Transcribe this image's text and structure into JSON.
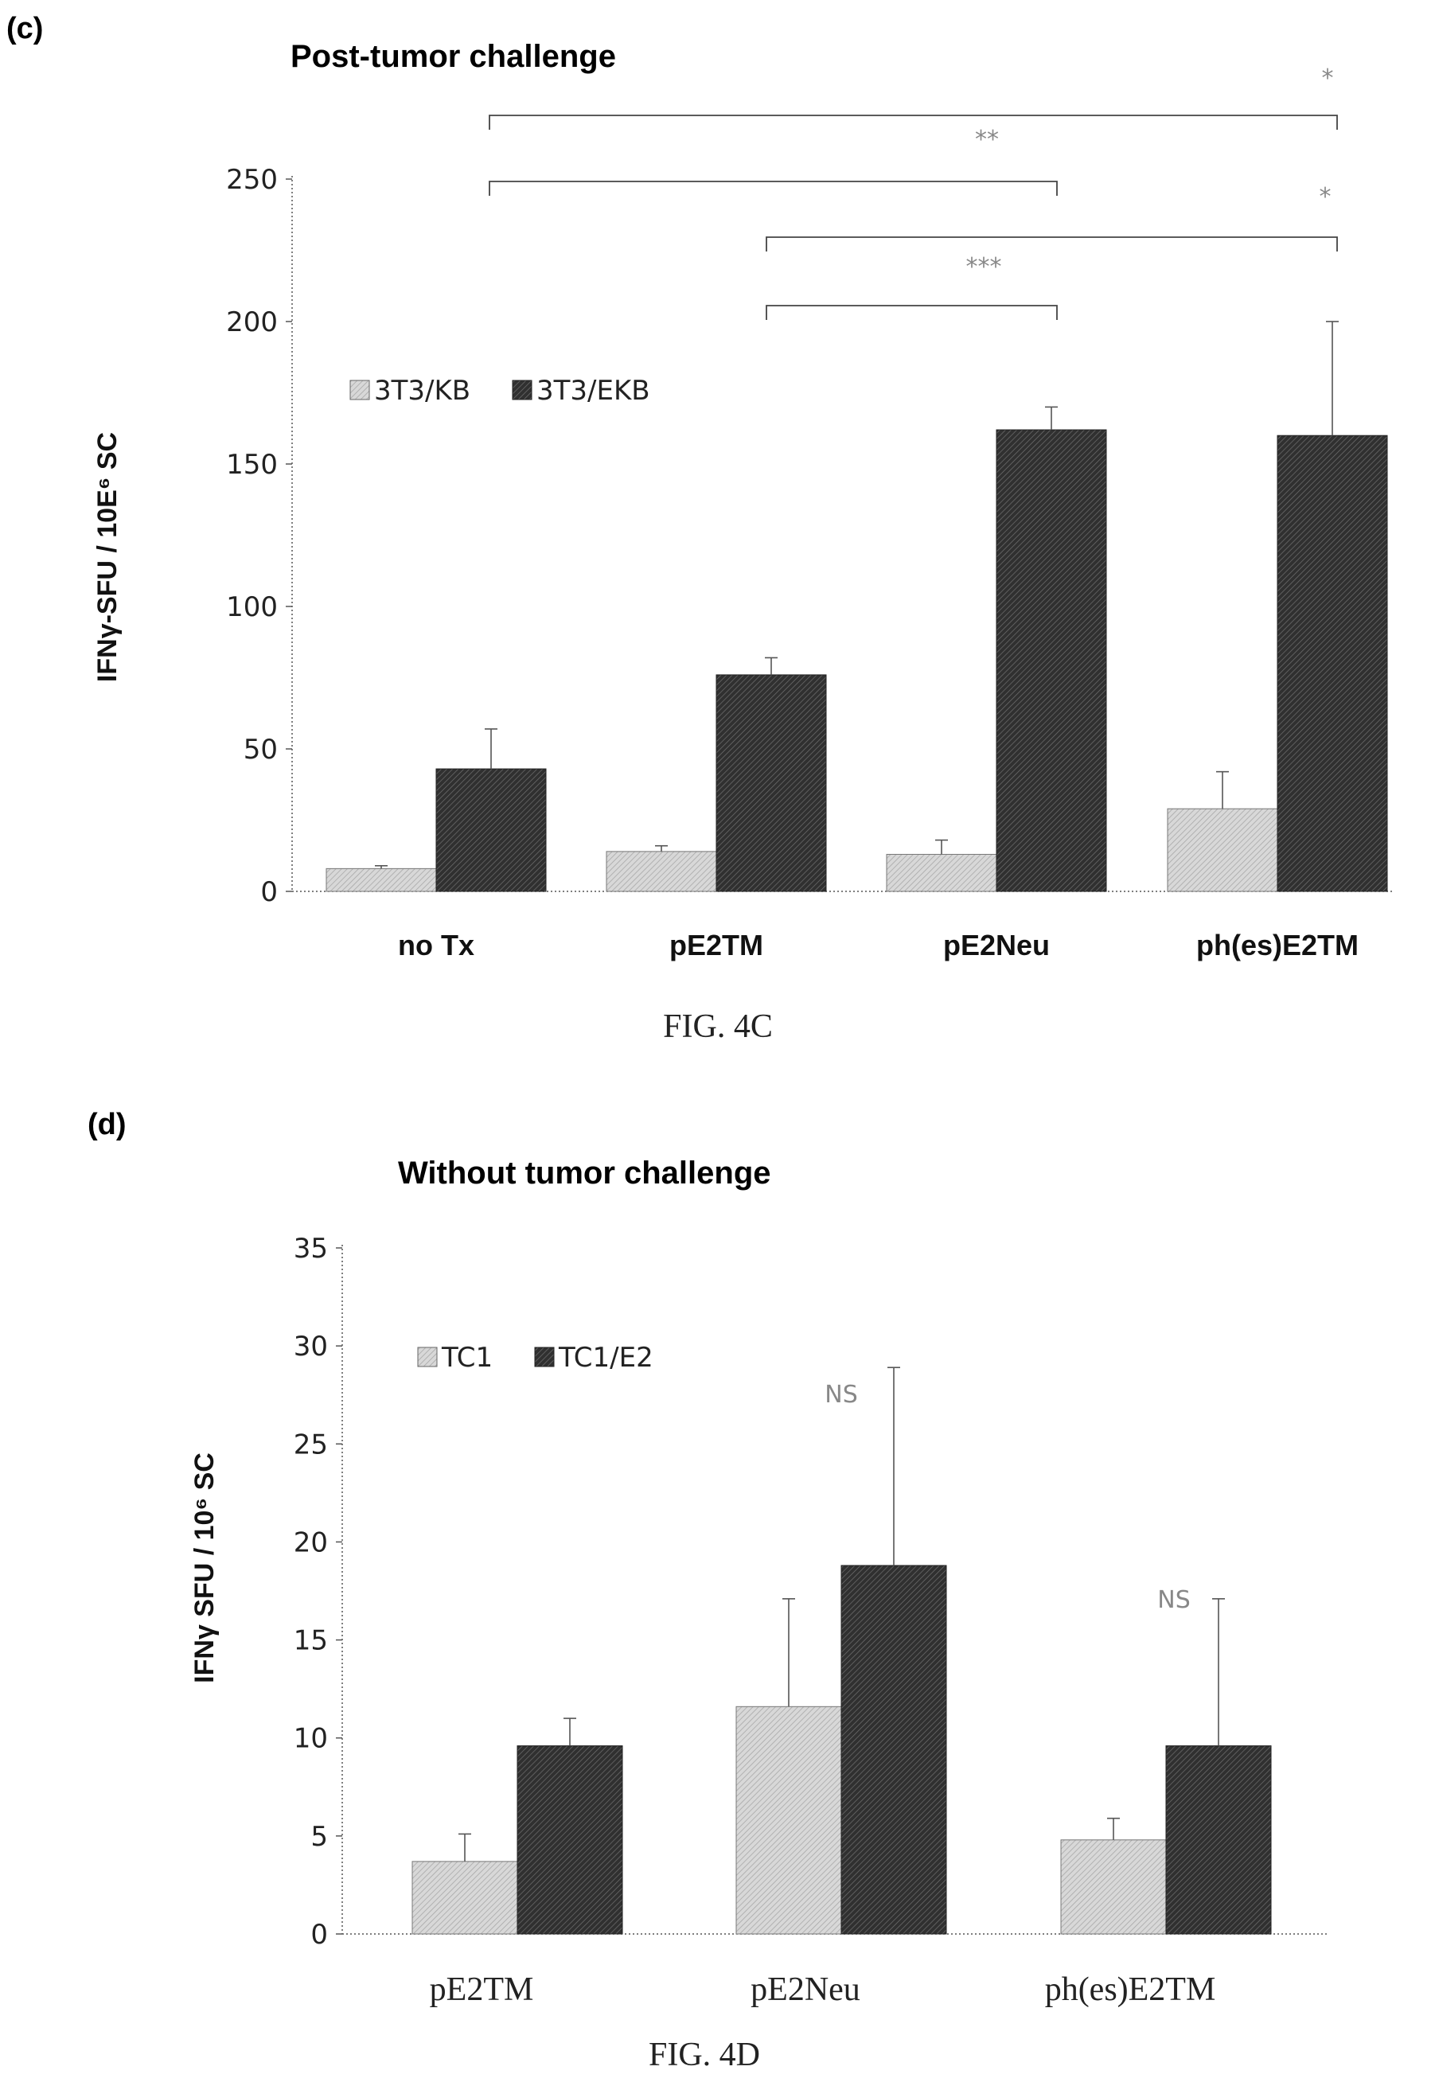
{
  "colors": {
    "light_bar": "#cfcfcf",
    "dark_bar": "#454545",
    "axis": "#555555",
    "bracket": "#444444",
    "sig_text": "#888888"
  },
  "chart_data": [
    {
      "panel": "(c)",
      "type": "bar",
      "title": "Post-tumor challenge",
      "ylabel": "IFNγ-SFU / 10E⁶ SC",
      "ylim": [
        0,
        250
      ],
      "yticks": [
        0,
        50,
        100,
        150,
        200,
        250
      ],
      "categories": [
        "no Tx",
        "pE2TM",
        "pE2Neu",
        "ph(es)E2TM"
      ],
      "series": [
        {
          "name": "3T3/KB",
          "values": [
            8,
            14,
            13,
            29
          ],
          "errors": [
            1,
            2,
            5,
            13
          ]
        },
        {
          "name": "3T3/EKB",
          "values": [
            43,
            76,
            162,
            160
          ],
          "errors": [
            14,
            6,
            8,
            40
          ]
        }
      ],
      "legend": "upper-left",
      "significance": [
        {
          "label": "*",
          "from": "no Tx",
          "to": "ph(es)E2TM"
        },
        {
          "label": "**",
          "from": "no Tx",
          "to": "pE2Neu"
        },
        {
          "label": "*",
          "from": "pE2TM",
          "to": "ph(es)E2TM"
        },
        {
          "label": "***",
          "from": "pE2TM",
          "to": "pE2Neu"
        }
      ],
      "caption": "FIG. 4C"
    },
    {
      "panel": "(d)",
      "type": "bar",
      "title": "Without tumor challenge",
      "ylabel": "IFNγ SFU / 10⁶ SC",
      "ylim": [
        0,
        35
      ],
      "yticks": [
        0,
        5,
        10,
        15,
        20,
        25,
        30,
        35
      ],
      "categories": [
        "pE2TM",
        "pE2Neu",
        "ph(es)E2TM"
      ],
      "series": [
        {
          "name": "TC1",
          "values": [
            3.7,
            11.6,
            4.8
          ],
          "errors": [
            1.4,
            5.5,
            1.1
          ]
        },
        {
          "name": "TC1/E2",
          "values": [
            9.6,
            18.8,
            9.6
          ],
          "errors": [
            1.4,
            10.1,
            7.5
          ]
        }
      ],
      "legend": "upper-left",
      "annotations": [
        {
          "label": "NS",
          "category": "pE2Neu"
        },
        {
          "label": "NS",
          "category": "ph(es)E2TM"
        }
      ],
      "caption": "FIG. 4D"
    }
  ]
}
